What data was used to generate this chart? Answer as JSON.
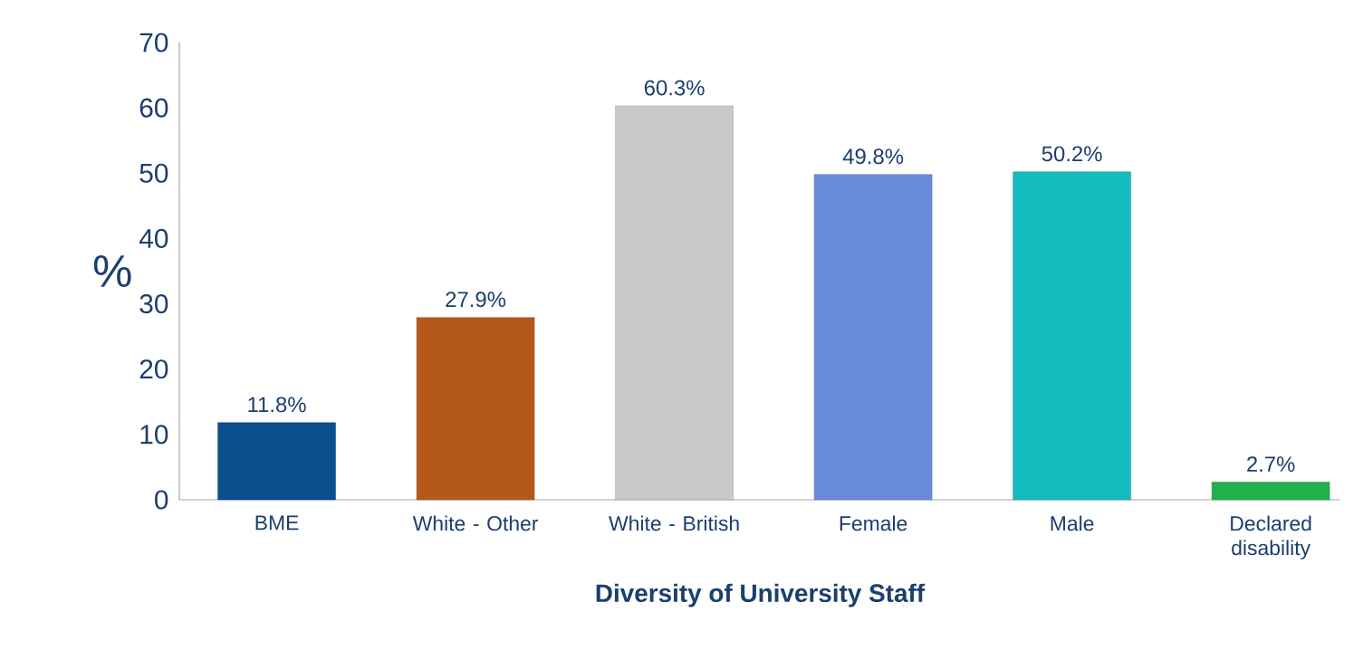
{
  "chart_data": {
    "type": "bar",
    "xlabel": "Diversity of University Staff",
    "ylabel": "%",
    "categories": [
      "BME",
      "White - Other",
      "White - British",
      "Female",
      "Male",
      "Declared disability"
    ],
    "values": [
      11.8,
      27.9,
      60.3,
      49.8,
      50.2,
      2.7
    ],
    "colors": [
      "#0b4f8f",
      "#b5581c",
      "#c9c9c9",
      "#6a8bd8",
      "#14bcc0",
      "#22b04a"
    ],
    "value_labels": [
      "11.8%",
      "27.9%",
      "60.3%",
      "49.8%",
      "50.2%",
      "2.7%"
    ],
    "ylim": [
      0,
      70
    ],
    "yticks": [
      0,
      10,
      20,
      30,
      40,
      50,
      60,
      70
    ],
    "grid": false
  }
}
